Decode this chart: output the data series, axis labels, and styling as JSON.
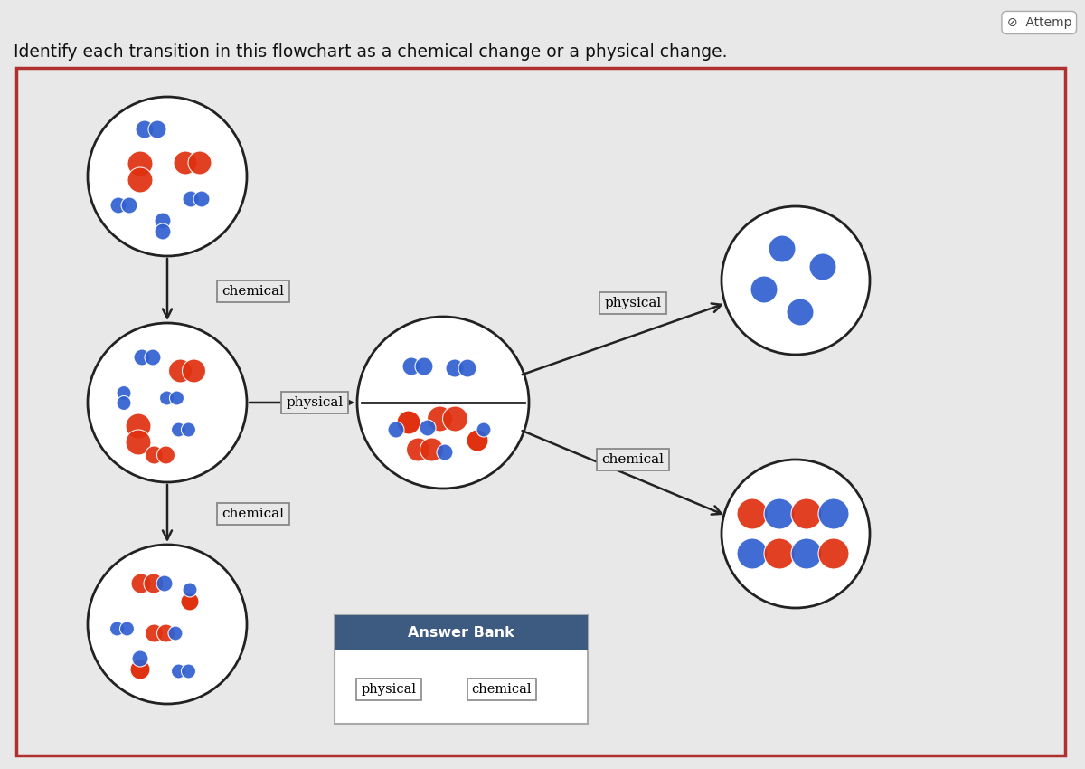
{
  "title": "Identify each transition in this flowchart as a chemical change or a physical change.",
  "bg_color": "#e8e8e8",
  "border_color": "#b03030",
  "panel_bg": "#eaeaea",
  "title_fontsize": 13.5,
  "red_color": "#e03010",
  "blue_color": "#3060d0",
  "answer_bank": {
    "header": "Answer Bank",
    "header_color": "#3d5a80",
    "items": [
      "physical",
      "chemical"
    ]
  }
}
